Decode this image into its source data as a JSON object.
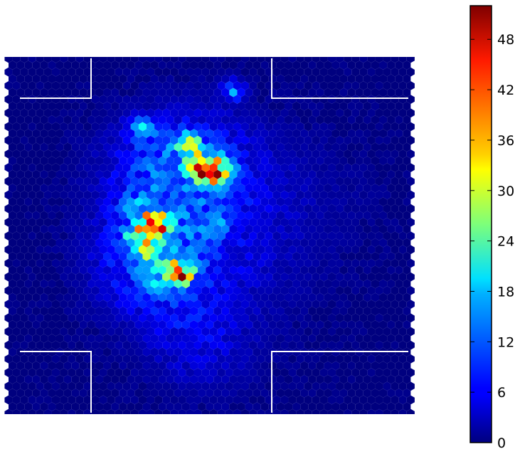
{
  "chart_data": {
    "type": "heatmap",
    "subtype": "hexbin",
    "title": "",
    "xlabel": "",
    "ylabel": "",
    "colormap": "jet",
    "background_color": "#00007f",
    "court_line_color": "#ffffff",
    "grid": false,
    "axes_visible": false,
    "color_range": [
      0,
      52
    ],
    "colorbar": {
      "position": "right",
      "ticks": [
        "0",
        "6",
        "12",
        "18",
        "24",
        "30",
        "36",
        "42",
        "48"
      ],
      "tick_values": [
        0,
        6,
        12,
        18,
        24,
        30,
        36,
        42,
        48
      ]
    },
    "hotspots": [
      {
        "x": 0.43,
        "y": 0.61,
        "value": 52
      },
      {
        "x": 0.36,
        "y": 0.47,
        "value": 46
      },
      {
        "x": 0.51,
        "y": 0.33,
        "value": 46
      },
      {
        "x": 0.5,
        "y": 0.31,
        "value": 40
      },
      {
        "x": 0.37,
        "y": 0.46,
        "value": 33
      },
      {
        "x": 0.45,
        "y": 0.24,
        "value": 30
      },
      {
        "x": 0.35,
        "y": 0.54,
        "value": 28
      },
      {
        "x": 0.41,
        "y": 0.59,
        "value": 26
      },
      {
        "x": 0.47,
        "y": 0.29,
        "value": 26
      },
      {
        "x": 0.32,
        "y": 0.5,
        "value": 24
      },
      {
        "x": 0.54,
        "y": 0.3,
        "value": 22
      },
      {
        "x": 0.33,
        "y": 0.2,
        "value": 20
      },
      {
        "x": 0.56,
        "y": 0.09,
        "value": 16
      },
      {
        "x": 0.38,
        "y": 0.64,
        "value": 18
      },
      {
        "x": 0.31,
        "y": 0.42,
        "value": 14
      },
      {
        "x": 0.51,
        "y": 0.47,
        "value": 14
      }
    ]
  }
}
